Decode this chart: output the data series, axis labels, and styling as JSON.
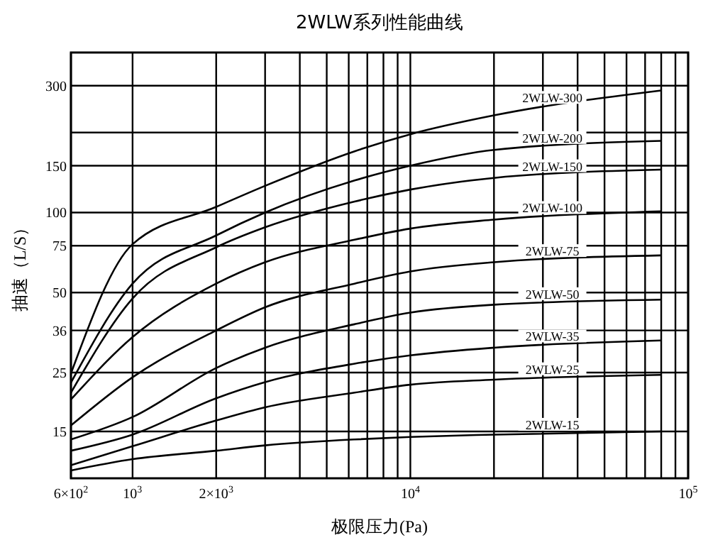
{
  "chart_data": {
    "type": "line",
    "title": "2WLW系列性能曲线",
    "xlabel": "极限压力(Pa)",
    "ylabel": "抽速（L/S）",
    "log": "xy",
    "grid": true,
    "legend": false,
    "marker": "none",
    "line_style": "solid",
    "x": [
      600,
      1000,
      2000,
      3000,
      6300,
      10000,
      20000,
      80000
    ],
    "xlim": [
      600,
      100000
    ],
    "xticks": [
      {
        "value": 600,
        "label": "6×10$^{2}$"
      },
      {
        "value": 1000,
        "label": "10$^{3}$"
      },
      {
        "value": 2000,
        "label": "2×10$^{3}$"
      },
      {
        "value": 3000,
        "label": null
      },
      {
        "value": 4000,
        "label": null
      },
      {
        "value": 5000,
        "label": null
      },
      {
        "value": 6000,
        "label": null
      },
      {
        "value": 7000,
        "label": null
      },
      {
        "value": 8000,
        "label": null
      },
      {
        "value": 9000,
        "label": null
      },
      {
        "value": 10000,
        "label": "10$^{4}$"
      },
      {
        "value": 20000,
        "label": null
      },
      {
        "value": 30000,
        "label": null
      },
      {
        "value": 40000,
        "label": null
      },
      {
        "value": 50000,
        "label": null
      },
      {
        "value": 60000,
        "label": null
      },
      {
        "value": 70000,
        "label": null
      },
      {
        "value": 80000,
        "label": null
      },
      {
        "value": 90000,
        "label": null
      },
      {
        "value": 100000,
        "label": "10$^{5}$"
      }
    ],
    "ylim": [
      10,
      400
    ],
    "yticks": [
      15,
      25,
      36,
      50,
      75,
      100,
      150,
      {
        "value": 200,
        "label": null
      },
      300
    ],
    "series": [
      {
        "name": "2WLW-300",
        "color": "#000000",
        "values": [
          24.8,
          76,
          105,
          126,
          170,
          197,
          232,
          288
        ]
      },
      {
        "name": "2WLW-200",
        "color": "#000000",
        "values": [
          22.9,
          54,
          82,
          100,
          132,
          150,
          172,
          186
        ]
      },
      {
        "name": "2WLW-150",
        "color": "#000000",
        "values": [
          21,
          47.5,
          74,
          88,
          110,
          122,
          135,
          145
        ]
      },
      {
        "name": "2WLW-100",
        "color": "#000000",
        "values": [
          19.8,
          34,
          54,
          65,
          79,
          87,
          94,
          101
        ]
      },
      {
        "name": "2WLW-75",
        "color": "#000000",
        "values": [
          15.8,
          24,
          36,
          44,
          54,
          60,
          65,
          69
        ]
      },
      {
        "name": "2WLW-50",
        "color": "#000000",
        "values": [
          14,
          17,
          26,
          31,
          38,
          42,
          45,
          47
        ]
      },
      {
        "name": "2WLW-35",
        "color": "#000000",
        "values": [
          12.7,
          14.6,
          20,
          23,
          27,
          29,
          31,
          33
        ]
      },
      {
        "name": "2WLW-25",
        "color": "#000000",
        "values": [
          11.2,
          13.2,
          16.5,
          18.5,
          21,
          22.5,
          23.5,
          24.5
        ]
      },
      {
        "name": "2WLW-15",
        "color": "#000000",
        "values": [
          10.7,
          11.8,
          12.7,
          13.3,
          14,
          14.3,
          14.6,
          15
        ]
      }
    ]
  }
}
